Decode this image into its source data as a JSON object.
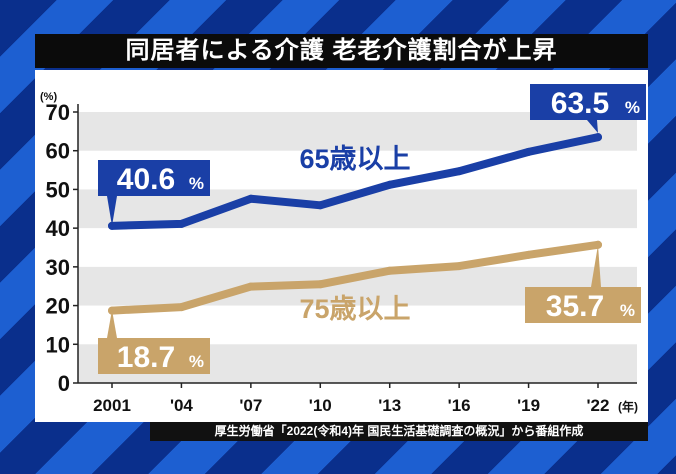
{
  "title": "同居者による介護 老老介護割合が上昇",
  "source": "厚生労働省「2022(令和4)年 国民生活基礎調査の概況」から番組作成",
  "chart_data": {
    "type": "line",
    "title": "同居者による介護 老老介護割合が上昇",
    "ylabel": "(%)",
    "xlabel": "(年)",
    "ylim": [
      0,
      70
    ],
    "yticks": [
      "0",
      "10",
      "20",
      "30",
      "40",
      "50",
      "60",
      "70"
    ],
    "categories": [
      "2001",
      "'04",
      "'07",
      "'10",
      "'13",
      "'16",
      "'19",
      "'22"
    ],
    "grid": "alternating horizontal bands",
    "series": [
      {
        "name": "65歳以上",
        "color": "#1a3fa6",
        "values": [
          40.6,
          41.1,
          47.6,
          45.9,
          51.2,
          54.7,
          59.7,
          63.5
        ],
        "labels": {
          "first": "40.6",
          "last": "63.5"
        }
      },
      {
        "name": "75歳以上",
        "color": "#c9a46a",
        "values": [
          18.7,
          19.6,
          24.9,
          25.5,
          29.0,
          30.2,
          33.1,
          35.7
        ],
        "labels": {
          "first": "18.7",
          "last": "35.7"
        }
      }
    ],
    "unit": "%"
  }
}
